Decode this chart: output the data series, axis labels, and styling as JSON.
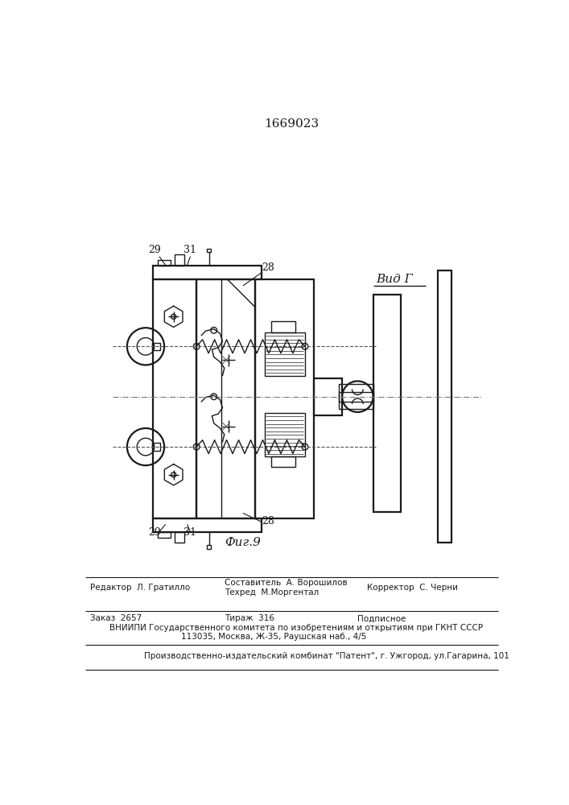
{
  "patent_number": "1669023",
  "view_label": "Вид Г",
  "fig_label": "Фиг.9",
  "bg_color": "#ffffff",
  "line_color": "#1a1a1a",
  "labels": {
    "29_top": "29",
    "31_top": "31",
    "28_top": "28",
    "29_bot": "29",
    "31_bot": "31",
    "28_bot": "28"
  },
  "footer": {
    "editor": "Редактор  Л. Гратилло",
    "composer_label": "Составитель  А. Ворошилов",
    "techred_label": "Техред  М.Моргентал",
    "corrector_label": "Корректор  С. Черни",
    "order": "Заказ  2657",
    "circulation": "Тираж  316",
    "subscription": "Подписное",
    "vniip_line1": "ВНИИПИ Государственного комитета по изобретениям и открытиям при ГКНТ СССР",
    "vniip_line2": "113035, Москва, Ж-35, Раушская наб., 4/5",
    "production": "Производственно-издательский комбинат \"Патент\", г. Ужгород, ул.Гагарина, 101"
  }
}
